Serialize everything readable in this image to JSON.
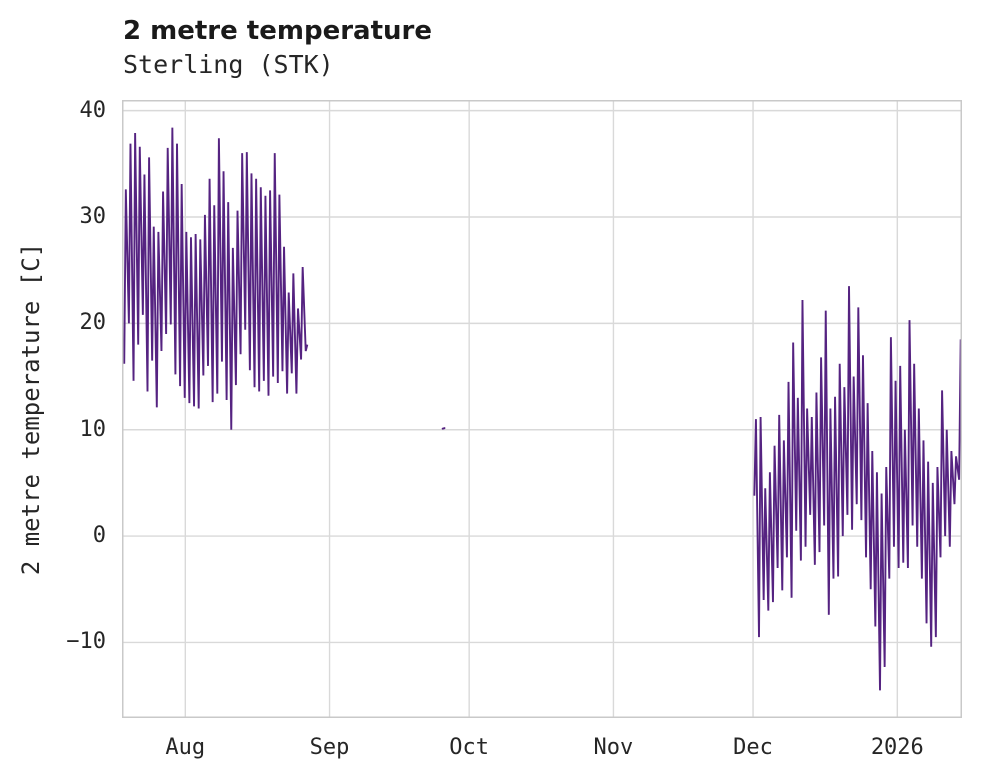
{
  "chart_data": {
    "type": "line",
    "title": "2 metre temperature",
    "subtitle": "Sterling (STK)",
    "station_name": "Sterling",
    "station_code": "STK",
    "ylabel": "2 metre temperature [C]",
    "xlabel": "",
    "unit": "C",
    "grid": true,
    "legend": "none",
    "background_color": "#ffffff",
    "line_color": "#552381",
    "grid_color": "#d9d9d9",
    "spine_color": "#c9c9c9",
    "text_color": "#262626",
    "ylim": [
      -17.1,
      41.0
    ],
    "yticks": [
      40,
      30,
      20,
      10,
      0,
      -10
    ],
    "x_axis": {
      "total_days": 180.5,
      "start_date": "2025-07-18",
      "end_date": "2026-01-15",
      "ticks": [
        {
          "label": "Aug",
          "day": 13.6
        },
        {
          "label": "Sep",
          "day": 44.6
        },
        {
          "label": "Oct",
          "day": 74.6
        },
        {
          "label": "Nov",
          "day": 105.6
        },
        {
          "label": "Dec",
          "day": 135.6
        },
        {
          "label": "2026",
          "day": 166.6
        }
      ]
    },
    "segments": [
      {
        "name": "summer-period",
        "start_date": "2025-07-19",
        "start_day": 0.2,
        "daily_min_max": [
          [
            16.2,
            32.6
          ],
          [
            20.0,
            36.9
          ],
          [
            14.6,
            37.9
          ],
          [
            18.0,
            36.6
          ],
          [
            20.8,
            34.0
          ],
          [
            13.6,
            35.6
          ],
          [
            16.5,
            29.1
          ],
          [
            12.1,
            28.6
          ],
          [
            17.4,
            32.4
          ],
          [
            19.0,
            36.5
          ],
          [
            19.9,
            38.4
          ],
          [
            15.2,
            36.9
          ],
          [
            14.1,
            33.1
          ],
          [
            13.0,
            28.6
          ],
          [
            12.5,
            28.1
          ],
          [
            12.2,
            28.4
          ],
          [
            12.0,
            27.9
          ],
          [
            15.1,
            30.2
          ],
          [
            16.0,
            33.6
          ],
          [
            12.6,
            31.1
          ],
          [
            13.4,
            37.4
          ],
          [
            16.4,
            34.3
          ],
          [
            12.8,
            31.4
          ],
          [
            10.0,
            27.1
          ],
          [
            14.2,
            30.6
          ],
          [
            17.1,
            36.0
          ],
          [
            19.4,
            36.1
          ],
          [
            15.6,
            34.1
          ],
          [
            14.0,
            33.6
          ],
          [
            13.6,
            32.8
          ],
          [
            14.6,
            32.0
          ],
          [
            13.2,
            32.5
          ],
          [
            15.0,
            36.0
          ],
          [
            14.4,
            32.1
          ],
          [
            15.5,
            27.2
          ],
          [
            13.4,
            22.9
          ],
          [
            15.3,
            24.7
          ],
          [
            13.4,
            21.4
          ],
          [
            16.6,
            25.3
          ],
          [
            17.4,
            18.0
          ]
        ]
      },
      {
        "name": "isolated-observation",
        "date": "2025-09-25",
        "points_day_temp": [
          [
            68.9,
            10.1
          ],
          [
            69.3,
            10.15
          ]
        ]
      },
      {
        "name": "winter-period",
        "start_date": "2025-12-01",
        "start_day": 135.6,
        "daily_min_max": [
          [
            3.8,
            11.0
          ],
          [
            -9.5,
            11.2
          ],
          [
            -6.0,
            4.5
          ],
          [
            -7.0,
            6.0
          ],
          [
            -6.2,
            8.5
          ],
          [
            -3.0,
            11.4
          ],
          [
            -5.1,
            9.0
          ],
          [
            -2.0,
            14.5
          ],
          [
            -5.8,
            18.2
          ],
          [
            0.5,
            13.0
          ],
          [
            -2.3,
            22.2
          ],
          [
            -1.0,
            12.0
          ],
          [
            2.0,
            11.2
          ],
          [
            -2.7,
            13.5
          ],
          [
            -1.5,
            16.8
          ],
          [
            1.0,
            21.2
          ],
          [
            -7.4,
            12.0
          ],
          [
            -4.0,
            13.1
          ],
          [
            -3.8,
            16.2
          ],
          [
            0.0,
            14.0
          ],
          [
            2.0,
            23.5
          ],
          [
            0.6,
            15.0
          ],
          [
            3.0,
            21.5
          ],
          [
            1.5,
            17.0
          ],
          [
            -2.0,
            12.5
          ],
          [
            -5.0,
            8.0
          ],
          [
            -8.5,
            6.0
          ],
          [
            -14.5,
            4.0
          ],
          [
            -12.3,
            6.5
          ],
          [
            -4.0,
            18.7
          ],
          [
            -1.0,
            14.6
          ],
          [
            -3.0,
            16.0
          ],
          [
            -2.5,
            10.0
          ],
          [
            -3.0,
            20.3
          ],
          [
            1.0,
            16.2
          ],
          [
            -1.0,
            12.0
          ],
          [
            -4.0,
            9.0
          ],
          [
            -8.2,
            7.0
          ],
          [
            -10.4,
            5.0
          ],
          [
            -9.5,
            6.5
          ],
          [
            -2.0,
            13.7
          ],
          [
            0.0,
            10.0
          ],
          [
            -1.0,
            8.0
          ],
          [
            3.0,
            7.5
          ],
          [
            5.3,
            18.5
          ]
        ]
      }
    ]
  }
}
